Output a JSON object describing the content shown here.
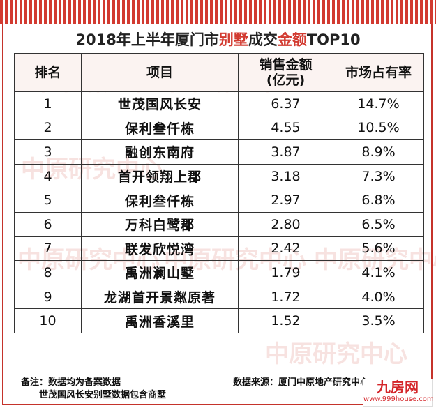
{
  "title": {
    "part1": "2018年上半年厦门市",
    "part2": "别墅",
    "part3": "成交",
    "part4": "金额",
    "part5": "TOP10"
  },
  "headers": {
    "rank": "排名",
    "project": "项目",
    "amount_l1": "销售金额",
    "amount_l2": "(亿元)",
    "share": "市场占有率"
  },
  "rows": [
    {
      "rank": "1",
      "project": "世茂国风长安",
      "amount": "6.37",
      "share": "14.7%"
    },
    {
      "rank": "2",
      "project": "保利叁仟栋",
      "amount": "4.55",
      "share": "10.5%"
    },
    {
      "rank": "3",
      "project": "融创东南府",
      "amount": "3.87",
      "share": "8.9%"
    },
    {
      "rank": "4",
      "project": "首开领翔上郡",
      "amount": "3.18",
      "share": "7.3%"
    },
    {
      "rank": "5",
      "project": "保利叁仟栋",
      "amount": "2.97",
      "share": "6.8%"
    },
    {
      "rank": "6",
      "project": "万科白鹭郡",
      "amount": "2.80",
      "share": "6.5%"
    },
    {
      "rank": "7",
      "project": "联发欣悦湾",
      "amount": "2.42",
      "share": "5.6%"
    },
    {
      "rank": "8",
      "project": "禹洲澜山墅",
      "amount": "1.79",
      "share": "4.1%"
    },
    {
      "rank": "9",
      "project": "龙湖首开景粼原著",
      "amount": "1.72",
      "share": "4.0%"
    },
    {
      "rank": "10",
      "project": "禹洲香溪里",
      "amount": "1.52",
      "share": "3.5%"
    }
  ],
  "footer": {
    "note_line1": "备注：数据均为备案数据",
    "note_line2": "世茂国风长安别墅数据包含商墅",
    "source": "数据来源：厦门中原地产研究中心"
  },
  "watermark": {
    "text": "中原研究中心"
  },
  "logo": {
    "mark": "九房网",
    "url": "www.999house.com"
  },
  "colors": {
    "accent_red": "#d23a30",
    "border": "#333333"
  }
}
